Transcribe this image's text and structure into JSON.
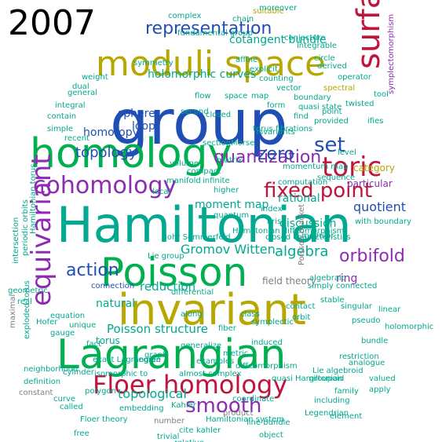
{
  "year_label": "2007",
  "colors": {
    "green": "#00b050",
    "teal": "#00a98f",
    "blue": "#1f4fb4",
    "olive": "#b6a800",
    "red": "#c0143c",
    "purple": "#8e2bb2",
    "gray": "#7f7f7f"
  },
  "words": [
    {
      "text": "group",
      "color": "blue"
    },
    {
      "text": "moduli space",
      "color": "olive"
    },
    {
      "text": "representation",
      "color": "blue"
    },
    {
      "text": "cotangent bundle",
      "color": "teal"
    },
    {
      "text": "holomorphic curves",
      "color": "teal"
    },
    {
      "text": "homology",
      "color": "green"
    },
    {
      "text": "cohomology",
      "color": "purple"
    },
    {
      "text": "equivariant",
      "color": "purple"
    },
    {
      "text": "surface",
      "color": "red"
    },
    {
      "text": "quantization",
      "color": "purple"
    },
    {
      "text": "toric",
      "color": "red"
    },
    {
      "text": "set",
      "color": "blue"
    },
    {
      "text": "zero",
      "color": "blue"
    },
    {
      "text": "fixed point",
      "color": "red"
    },
    {
      "text": "topology",
      "color": "blue"
    },
    {
      "text": "homotopy",
      "color": "blue"
    },
    {
      "text": "sphere",
      "color": "blue"
    },
    {
      "text": "loop",
      "color": "blue"
    },
    {
      "text": "Hamiltonian",
      "color": "teal"
    },
    {
      "text": "Poisson",
      "color": "green"
    },
    {
      "text": "invariant",
      "color": "olive"
    },
    {
      "text": "Lagrangian",
      "color": "green"
    },
    {
      "text": "Floer homology",
      "color": "red"
    },
    {
      "text": "smooth",
      "color": "purple"
    },
    {
      "text": "orbifold",
      "color": "purple"
    },
    {
      "text": "quotient",
      "color": "blue"
    },
    {
      "text": "action",
      "color": "blue"
    },
    {
      "text": "Gromov Witten",
      "color": "teal"
    },
    {
      "text": "moment map",
      "color": "teal"
    },
    {
      "text": "algebra",
      "color": "teal"
    },
    {
      "text": "reduction",
      "color": "teal"
    },
    {
      "text": "Poisson structure",
      "color": "teal"
    },
    {
      "text": "natural",
      "color": "teal"
    },
    {
      "text": "torus",
      "color": "teal"
    },
    {
      "text": "topological",
      "color": "teal"
    },
    {
      "text": "ring",
      "color": "purple"
    },
    {
      "text": "discussion",
      "color": "teal"
    },
    {
      "text": "particular",
      "color": "purple"
    },
    {
      "text": "category",
      "color": "olive"
    },
    {
      "text": "rational",
      "color": "teal"
    },
    {
      "text": "sequence",
      "color": "teal"
    },
    {
      "text": "index",
      "color": "teal"
    },
    {
      "text": "field theory",
      "color": "gray"
    },
    {
      "text": "Hamiltonian diffeomorphism",
      "color": "teal"
    },
    {
      "text": "momentum map",
      "color": "teal"
    },
    {
      "text": "computation",
      "color": "teal"
    },
    {
      "text": "closed characteristics",
      "color": "teal"
    },
    {
      "text": "spectral",
      "color": "olive"
    },
    {
      "text": "quasi state",
      "color": "teal"
    },
    {
      "text": "boundary",
      "color": "teal"
    },
    {
      "text": "torus fibrations",
      "color": "teal"
    },
    {
      "text": "connection",
      "color": "blue"
    },
    {
      "text": "Hamiltonian torus",
      "color": "teal"
    },
    {
      "text": "periodic orbits",
      "color": "teal"
    },
    {
      "text": "intersection",
      "color": "teal"
    },
    {
      "text": "geometric",
      "color": "teal"
    },
    {
      "text": "maximal",
      "color": "gray"
    },
    {
      "text": "exploded torus",
      "color": "teal"
    },
    {
      "text": "equation",
      "color": "teal"
    },
    {
      "text": "fact",
      "color": "teal"
    },
    {
      "text": "exact Lagrangian",
      "color": "teal"
    },
    {
      "text": "isomorphic to",
      "color": "teal"
    },
    {
      "text": "neighborhood",
      "color": "teal"
    },
    {
      "text": "definition",
      "color": "teal"
    },
    {
      "text": "constant",
      "color": "gray"
    },
    {
      "text": "embedding",
      "color": "teal"
    },
    {
      "text": "number",
      "color": "gray"
    },
    {
      "text": "Floer theory",
      "color": "teal"
    },
    {
      "text": "Hamiltonian system",
      "color": "teal"
    },
    {
      "text": "trivial",
      "color": "teal"
    },
    {
      "text": "cite",
      "color": "teal"
    },
    {
      "text": "almost complex",
      "color": "teal"
    },
    {
      "text": "along",
      "color": "teal"
    },
    {
      "text": "differential",
      "color": "teal"
    },
    {
      "text": "generalize",
      "color": "teal"
    },
    {
      "text": "Bohr Sommerfeld",
      "color": "teal"
    },
    {
      "text": "quasi Hamiltonian",
      "color": "teal"
    },
    {
      "text": "Lie algebroid",
      "color": "teal"
    },
    {
      "text": "diffeomorphism",
      "color": "teal"
    },
    {
      "text": "groupoid",
      "color": "teal"
    },
    {
      "text": "product",
      "color": "gray"
    },
    {
      "text": "line bundle",
      "color": "teal"
    },
    {
      "text": "coordinate",
      "color": "teal"
    },
    {
      "text": "Legendrian",
      "color": "teal"
    },
    {
      "text": "family",
      "color": "teal"
    },
    {
      "text": "restriction",
      "color": "teal"
    },
    {
      "text": "singular",
      "color": "teal"
    },
    {
      "text": "simply connected",
      "color": "teal"
    },
    {
      "text": "with boundary",
      "color": "teal"
    },
    {
      "text": "point",
      "color": "teal"
    },
    {
      "text": "algebraic",
      "color": "teal"
    },
    {
      "text": "modular",
      "color": "teal"
    },
    {
      "text": "stable",
      "color": "teal"
    },
    {
      "text": "symplectomorphism",
      "color": "purple"
    },
    {
      "text": "Lie group",
      "color": "teal"
    },
    {
      "text": "complex",
      "color": "teal"
    },
    {
      "text": "suitable",
      "color": "olive"
    },
    {
      "text": "Poisson bracket",
      "color": "gray"
    },
    {
      "text": "analogue",
      "color": "teal"
    },
    {
      "text": "general",
      "color": "teal"
    },
    {
      "text": "integral",
      "color": "teal"
    },
    {
      "text": "contain",
      "color": "teal"
    },
    {
      "text": "simple",
      "color": "teal"
    },
    {
      "text": "recent",
      "color": "teal"
    },
    {
      "text": "free",
      "color": "teal"
    },
    {
      "text": "relative",
      "color": "teal"
    },
    {
      "text": "curve",
      "color": "teal"
    },
    {
      "text": "valued",
      "color": "teal"
    },
    {
      "text": "level",
      "color": "teal"
    },
    {
      "text": "ifies",
      "color": "teal"
    },
    {
      "text": "tool",
      "color": "teal"
    },
    {
      "text": "linear",
      "color": "teal"
    },
    {
      "text": "holomorphic",
      "color": "teal"
    },
    {
      "text": "apply",
      "color": "teal"
    },
    {
      "text": "real",
      "color": "teal"
    },
    {
      "text": "gauge",
      "color": "teal"
    },
    {
      "text": "pseudo",
      "color": "teal"
    },
    {
      "text": "section",
      "color": "teal"
    },
    {
      "text": "arise",
      "color": "teal"
    },
    {
      "text": "including",
      "color": "teal"
    },
    {
      "text": "called",
      "color": "teal"
    },
    {
      "text": "kahler",
      "color": "teal"
    },
    {
      "text": "unique",
      "color": "teal"
    },
    {
      "text": "matrix",
      "color": "teal"
    },
    {
      "text": "Morse",
      "color": "teal"
    },
    {
      "text": "volume",
      "color": "teal"
    },
    {
      "text": "compact",
      "color": "teal"
    },
    {
      "text": "infinite",
      "color": "teal"
    },
    {
      "text": "higher",
      "color": "teal"
    },
    {
      "text": "second",
      "color": "teal"
    },
    {
      "text": "Hofer",
      "color": "teal"
    },
    {
      "text": "closed",
      "color": "teal"
    },
    {
      "text": "circle",
      "color": "teal"
    },
    {
      "text": "find",
      "color": "teal"
    },
    {
      "text": "provided",
      "color": "teal"
    },
    {
      "text": "quantum",
      "color": "teal"
    },
    {
      "text": "element",
      "color": "teal"
    },
    {
      "text": "bundle",
      "color": "teal"
    },
    {
      "text": "object",
      "color": "teal"
    },
    {
      "text": "flow",
      "color": "teal"
    },
    {
      "text": "space",
      "color": "teal"
    },
    {
      "text": "map",
      "color": "teal"
    },
    {
      "text": "form",
      "color": "teal"
    },
    {
      "text": "vector",
      "color": "teal"
    },
    {
      "text": "Kahler",
      "color": "teal"
    },
    {
      "text": "examples",
      "color": "teal"
    },
    {
      "text": "cylinder",
      "color": "teal"
    },
    {
      "text": "polygon",
      "color": "teal"
    },
    {
      "text": "metric",
      "color": "teal"
    },
    {
      "text": "fiber",
      "color": "teal"
    },
    {
      "text": "induced",
      "color": "teal"
    },
    {
      "text": "chain",
      "color": "teal"
    },
    {
      "text": "moreover",
      "color": "teal"
    },
    {
      "text": "integrable",
      "color": "teal"
    },
    {
      "text": "conjecture",
      "color": "teal"
    },
    {
      "text": "derived",
      "color": "teal"
    },
    {
      "text": "operator",
      "color": "teal"
    },
    {
      "text": "twisted",
      "color": "teal"
    },
    {
      "text": "counting",
      "color": "teal"
    },
    {
      "text": "explicit",
      "color": "teal"
    },
    {
      "text": "affine",
      "color": "teal"
    },
    {
      "text": "invariants",
      "color": "teal"
    },
    {
      "text": "manifold",
      "color": "teal"
    },
    {
      "text": "local",
      "color": "teal"
    },
    {
      "text": "degree",
      "color": "teal"
    },
    {
      "text": "graph",
      "color": "teal"
    },
    {
      "text": "symmetry",
      "color": "teal"
    },
    {
      "text": "weight",
      "color": "teal"
    },
    {
      "text": "dual",
      "color": "teal"
    },
    {
      "text": "fundamental group",
      "color": "teal"
    },
    {
      "text": "symplectic",
      "color": "teal"
    },
    {
      "text": "contact",
      "color": "teal"
    },
    {
      "text": "orbit",
      "color": "teal"
    },
    {
      "text": "class",
      "color": "teal"
    }
  ]
}
